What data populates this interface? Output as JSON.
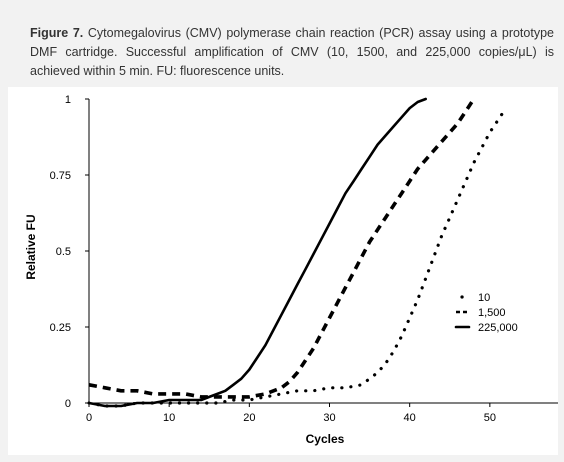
{
  "caption": {
    "label": "Figure 7.",
    "text": "Cytomegalovirus (CMV) polymerase chain reaction (PCR) assay using a prototype DMF cartridge. Successful amplification of CMV (10, 1500, and 225,000 copies/μL) is achieved within 5 min. FU: fluorescence units."
  },
  "chart_data": {
    "type": "line",
    "xlabel": "Cycles",
    "ylabel": "Relative FU",
    "xlim": [
      0,
      59
    ],
    "ylim": [
      0,
      1
    ],
    "xticks": [
      "0",
      "10",
      "20",
      "30",
      "40",
      "50"
    ],
    "yticks": [
      "0",
      "0.25",
      "0.5",
      "0.75",
      "1"
    ],
    "grid": false,
    "legend_position": "right",
    "series": [
      {
        "name": "10",
        "style": "dotted",
        "color": "#000000",
        "x": [
          0,
          2,
          4,
          6,
          8,
          10,
          12,
          14,
          16,
          18,
          20,
          22,
          24,
          26,
          28,
          30,
          32,
          34,
          35,
          36,
          37,
          38,
          39,
          40,
          41,
          42,
          43,
          44,
          45,
          46,
          47,
          48,
          49,
          50,
          51,
          52
        ],
        "y": [
          0.0,
          -0.01,
          -0.01,
          0.0,
          0.0,
          0.0,
          0.0,
          0.0,
          0.0,
          0.01,
          0.01,
          0.02,
          0.03,
          0.04,
          0.04,
          0.05,
          0.05,
          0.06,
          0.08,
          0.1,
          0.13,
          0.17,
          0.22,
          0.28,
          0.34,
          0.41,
          0.48,
          0.55,
          0.61,
          0.67,
          0.73,
          0.79,
          0.84,
          0.89,
          0.93,
          0.97
        ]
      },
      {
        "name": "1,500",
        "style": "dashed",
        "color": "#000000",
        "x": [
          0,
          2,
          4,
          6,
          8,
          10,
          12,
          14,
          16,
          18,
          20,
          22,
          24,
          25,
          26,
          27,
          28,
          29,
          30,
          31,
          32,
          33,
          34,
          35,
          36,
          37,
          38,
          39,
          40,
          41,
          42,
          43,
          44,
          45,
          46,
          47,
          48
        ],
        "y": [
          0.06,
          0.05,
          0.04,
          0.04,
          0.03,
          0.03,
          0.03,
          0.02,
          0.02,
          0.02,
          0.02,
          0.03,
          0.05,
          0.07,
          0.1,
          0.14,
          0.18,
          0.23,
          0.28,
          0.33,
          0.38,
          0.43,
          0.48,
          0.53,
          0.57,
          0.61,
          0.65,
          0.69,
          0.73,
          0.77,
          0.8,
          0.83,
          0.86,
          0.89,
          0.92,
          0.96,
          1.0
        ]
      },
      {
        "name": "225,000",
        "style": "solid",
        "color": "#000000",
        "x": [
          0,
          2,
          4,
          6,
          8,
          10,
          12,
          14,
          15,
          16,
          17,
          18,
          19,
          20,
          21,
          22,
          23,
          24,
          25,
          26,
          27,
          28,
          29,
          30,
          31,
          32,
          33,
          34,
          35,
          36,
          37,
          38,
          39,
          40,
          41,
          42
        ],
        "y": [
          0.0,
          -0.01,
          -0.01,
          0.0,
          0.0,
          0.01,
          0.01,
          0.01,
          0.02,
          0.03,
          0.04,
          0.06,
          0.08,
          0.11,
          0.15,
          0.19,
          0.24,
          0.29,
          0.34,
          0.39,
          0.44,
          0.49,
          0.54,
          0.59,
          0.64,
          0.69,
          0.73,
          0.77,
          0.81,
          0.85,
          0.88,
          0.91,
          0.94,
          0.97,
          0.99,
          1.0
        ]
      }
    ]
  }
}
